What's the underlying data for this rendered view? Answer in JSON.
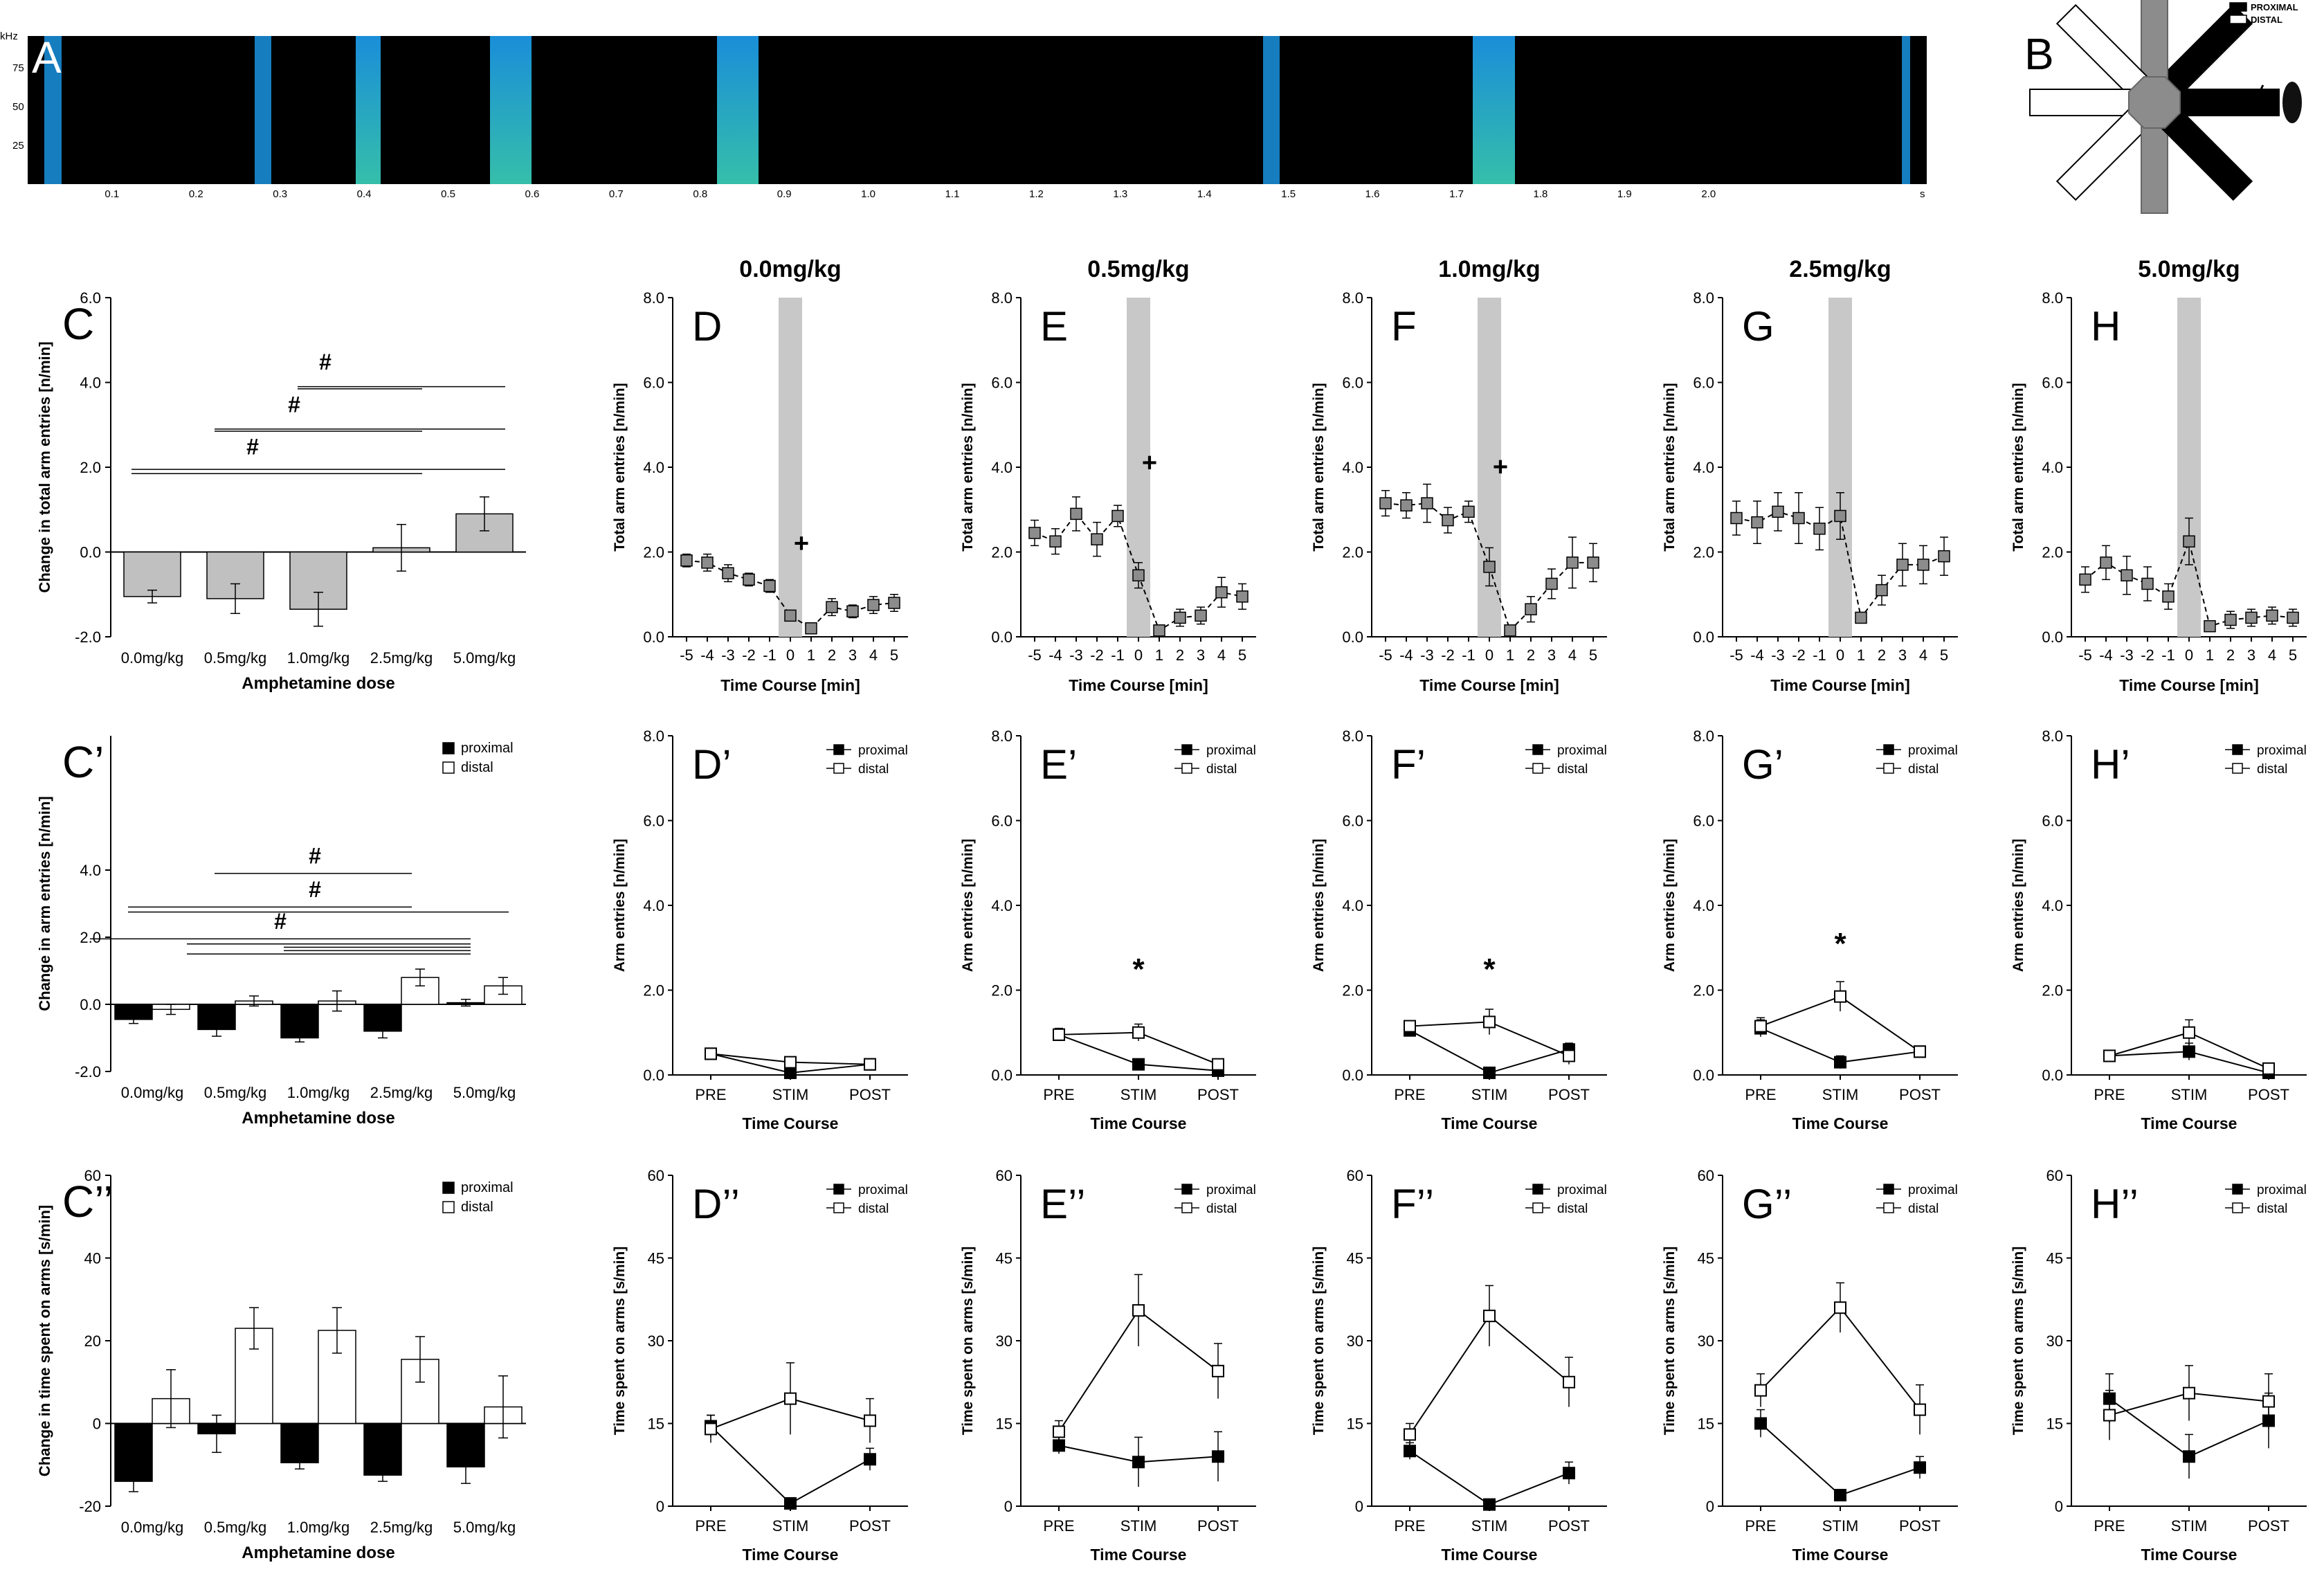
{
  "panel_A": {
    "letter": "A",
    "y_unit": "kHz",
    "y_ticks": [
      "75",
      "50",
      "25"
    ],
    "x_ticks": [
      "0.1",
      "0.2",
      "0.3",
      "0.4",
      "0.5",
      "0.6",
      "0.7",
      "0.8",
      "0.9",
      "1.0",
      "1.1",
      "1.2",
      "1.3",
      "1.4",
      "1.5",
      "1.6",
      "1.7",
      "1.8",
      "1.9",
      "2.0"
    ],
    "x_unit": "s",
    "bursts_s": [
      [
        0.02,
        0.04
      ],
      [
        0.27,
        0.29
      ],
      [
        0.39,
        0.42
      ],
      [
        0.55,
        0.6
      ],
      [
        0.82,
        0.87
      ],
      [
        1.47,
        1.49
      ],
      [
        1.72,
        1.77
      ],
      [
        2.23,
        2.24
      ]
    ],
    "colors": {
      "background": "#000000",
      "signal": "#1ea7ff",
      "strong": "#3fe0c8"
    }
  },
  "panel_B": {
    "letter": "B",
    "legend": [
      {
        "label": "PROXIMAL",
        "fill": "#000000"
      },
      {
        "label": "DISTAL",
        "fill": "#ffffff"
      }
    ]
  },
  "column_titles": [
    "0.0mg/kg",
    "0.5mg/kg",
    "1.0mg/kg",
    "2.5mg/kg",
    "5.0mg/kg"
  ],
  "chart_data": [
    {
      "id": "C",
      "letter": "C",
      "type": "bar",
      "ylabel": "Change in total arm entries [n/min]",
      "xlabel": "Amphetamine dose",
      "categories": [
        "0.0mg/kg",
        "0.5mg/kg",
        "1.0mg/kg",
        "2.5mg/kg",
        "5.0mg/kg"
      ],
      "ylim": [
        -2,
        6
      ],
      "yticks": [
        -2,
        0,
        2,
        4,
        6
      ],
      "ytick_labels": [
        "-2.0",
        "0.0",
        "2.0",
        "4.0",
        "6.0"
      ],
      "series": [
        {
          "values": [
            -1.05,
            -1.1,
            -1.35,
            0.1,
            0.9
          ],
          "errors": [
            0.15,
            0.35,
            0.4,
            0.55,
            0.4
          ],
          "color": "#c0c0c0"
        }
      ],
      "annotations": [
        "#",
        "#",
        "#"
      ]
    },
    {
      "id": "C'",
      "letter": "C’",
      "type": "bar",
      "ylabel": "Change in arm entries [n/min]",
      "xlabel": "Amphetamine dose",
      "categories": [
        "0.0mg/kg",
        "0.5mg/kg",
        "1.0mg/kg",
        "2.5mg/kg",
        "5.0mg/kg"
      ],
      "ylim": [
        -2,
        8
      ],
      "yticks": [
        -2,
        0,
        2,
        4
      ],
      "ytick_labels": [
        "-2.0",
        "0.0",
        "2.0",
        "4.0"
      ],
      "legend": [
        "proximal",
        "distal"
      ],
      "series": [
        {
          "name": "proximal",
          "values": [
            -0.45,
            -0.75,
            -1.0,
            -0.8,
            0.05
          ],
          "errors": [
            0.12,
            0.2,
            0.12,
            0.2,
            0.1
          ],
          "color": "#000000"
        },
        {
          "name": "distal",
          "values": [
            -0.15,
            0.1,
            0.1,
            0.8,
            0.55
          ],
          "errors": [
            0.15,
            0.15,
            0.3,
            0.25,
            0.25
          ],
          "color": "#ffffff"
        }
      ],
      "annotations": [
        "#",
        "#",
        "#"
      ]
    },
    {
      "id": "C''",
      "letter": "C’’",
      "type": "bar",
      "ylabel": "Change in time spent on arms [s/min]",
      "xlabel": "Amphetamine dose",
      "categories": [
        "0.0mg/kg",
        "0.5mg/kg",
        "1.0mg/kg",
        "2.5mg/kg",
        "5.0mg/kg"
      ],
      "ylim": [
        -20,
        60
      ],
      "yticks": [
        -20,
        0,
        20,
        40,
        60
      ],
      "ytick_labels": [
        "-20",
        "0",
        "20",
        "40",
        "60"
      ],
      "legend": [
        "proximal",
        "distal"
      ],
      "series": [
        {
          "name": "proximal",
          "values": [
            -14,
            -2.5,
            -9.5,
            -12.5,
            -10.5
          ],
          "errors": [
            2.5,
            4.5,
            1.5,
            1.5,
            4
          ],
          "color": "#000000"
        },
        {
          "name": "distal",
          "values": [
            6,
            23,
            22.5,
            15.5,
            4
          ],
          "errors": [
            7,
            5,
            5.5,
            5.5,
            7.5
          ],
          "color": "#ffffff"
        }
      ]
    },
    {
      "id": "D",
      "letter": "D",
      "type": "line",
      "xlabel": "Time Course [min]",
      "ylabel": "Total arm entries [n/min]",
      "x": [
        -5,
        -4,
        -3,
        -2,
        -1,
        0,
        1,
        2,
        3,
        4,
        5
      ],
      "ylim": [
        0,
        8
      ],
      "values": [
        1.8,
        1.75,
        1.5,
        1.35,
        1.2,
        0.5,
        0.2,
        0.7,
        0.6,
        0.75,
        0.8
      ],
      "errors": [
        0.15,
        0.2,
        0.2,
        0.15,
        0.15,
        0.1,
        0.05,
        0.2,
        0.15,
        0.2,
        0.2
      ],
      "marker": "+",
      "marker_value": 2.2
    },
    {
      "id": "E",
      "letter": "E",
      "type": "line",
      "xlabel": "Time Course [min]",
      "ylabel": "Total arm entries [n/min]",
      "x": [
        -5,
        -4,
        -3,
        -2,
        -1,
        0,
        1,
        2,
        3,
        4,
        5
      ],
      "ylim": [
        0,
        8
      ],
      "values": [
        2.45,
        2.25,
        2.9,
        2.3,
        2.85,
        1.45,
        0.15,
        0.45,
        0.5,
        1.05,
        0.95
      ],
      "errors": [
        0.3,
        0.3,
        0.4,
        0.4,
        0.25,
        0.3,
        0.05,
        0.2,
        0.2,
        0.35,
        0.3
      ],
      "marker": "+",
      "marker_value": 4.1
    },
    {
      "id": "F",
      "letter": "F",
      "type": "line",
      "xlabel": "Time Course [min]",
      "ylabel": "Total arm entries [n/min]",
      "x": [
        -5,
        -4,
        -3,
        -2,
        -1,
        0,
        1,
        2,
        3,
        4,
        5
      ],
      "ylim": [
        0,
        8
      ],
      "values": [
        3.15,
        3.1,
        3.15,
        2.75,
        2.95,
        1.65,
        0.15,
        0.65,
        1.25,
        1.75,
        1.75
      ],
      "errors": [
        0.3,
        0.3,
        0.45,
        0.3,
        0.25,
        0.45,
        0.05,
        0.3,
        0.35,
        0.6,
        0.45
      ],
      "marker": "+",
      "marker_value": 4.0
    },
    {
      "id": "G",
      "letter": "G",
      "type": "line",
      "xlabel": "Time Course [min]",
      "ylabel": "Total arm entries [n/min]",
      "x": [
        -5,
        -4,
        -3,
        -2,
        -1,
        0,
        1,
        2,
        3,
        4,
        5
      ],
      "ylim": [
        0,
        8
      ],
      "values": [
        2.8,
        2.7,
        2.95,
        2.8,
        2.55,
        2.85,
        0.45,
        1.1,
        1.7,
        1.7,
        1.9
      ],
      "errors": [
        0.4,
        0.5,
        0.45,
        0.6,
        0.5,
        0.55,
        0.1,
        0.35,
        0.5,
        0.45,
        0.45
      ]
    },
    {
      "id": "H",
      "letter": "H",
      "type": "line",
      "xlabel": "Time Course [min]",
      "ylabel": "Total arm entries [n/min]",
      "x": [
        -5,
        -4,
        -3,
        -2,
        -1,
        0,
        1,
        2,
        3,
        4,
        5
      ],
      "ylim": [
        0,
        8
      ],
      "values": [
        1.35,
        1.75,
        1.45,
        1.25,
        0.95,
        2.25,
        0.25,
        0.4,
        0.45,
        0.5,
        0.45
      ],
      "errors": [
        0.3,
        0.4,
        0.45,
        0.4,
        0.3,
        0.55,
        0.05,
        0.2,
        0.2,
        0.2,
        0.2
      ]
    },
    {
      "id": "D'",
      "letter": "D’",
      "type": "line",
      "xlabel": "Time Course",
      "ylabel": "Arm entries [n/min]",
      "categories": [
        "PRE",
        "STIM",
        "POST"
      ],
      "ylim": [
        0,
        8
      ],
      "legend": [
        "proximal",
        "distal"
      ],
      "series": [
        {
          "name": "proximal",
          "values": [
            0.5,
            0.05,
            0.25
          ],
          "errors": [
            0.05,
            0.05,
            0.05
          ]
        },
        {
          "name": "distal",
          "values": [
            0.5,
            0.3,
            0.25
          ],
          "errors": [
            0.1,
            0.1,
            0.05
          ]
        }
      ]
    },
    {
      "id": "E'",
      "letter": "E’",
      "type": "line",
      "xlabel": "Time Course",
      "ylabel": "Arm entries [n/min]",
      "categories": [
        "PRE",
        "STIM",
        "POST"
      ],
      "ylim": [
        0,
        8
      ],
      "legend": [
        "proximal",
        "distal"
      ],
      "series": [
        {
          "name": "proximal",
          "values": [
            0.95,
            0.25,
            0.1
          ],
          "errors": [
            0.1,
            0.05,
            0.05
          ]
        },
        {
          "name": "distal",
          "values": [
            0.95,
            1.0,
            0.25
          ],
          "errors": [
            0.15,
            0.2,
            0.1
          ]
        }
      ],
      "marker": "*",
      "marker_value": 2.5
    },
    {
      "id": "F'",
      "letter": "F’",
      "type": "line",
      "xlabel": "Time Course",
      "ylabel": "Arm entries [n/min]",
      "categories": [
        "PRE",
        "STIM",
        "POST"
      ],
      "ylim": [
        0,
        8
      ],
      "legend": [
        "proximal",
        "distal"
      ],
      "series": [
        {
          "name": "proximal",
          "values": [
            1.05,
            0.05,
            0.6
          ],
          "errors": [
            0.1,
            0.05,
            0.15
          ]
        },
        {
          "name": "distal",
          "values": [
            1.15,
            1.25,
            0.45
          ],
          "errors": [
            0.1,
            0.3,
            0.2
          ]
        }
      ],
      "marker": "*",
      "marker_value": 2.5
    },
    {
      "id": "G'",
      "letter": "G’",
      "type": "line",
      "xlabel": "Time Course",
      "ylabel": "Arm entries [n/min]",
      "categories": [
        "PRE",
        "STIM",
        "POST"
      ],
      "ylim": [
        0,
        8
      ],
      "legend": [
        "proximal",
        "distal"
      ],
      "series": [
        {
          "name": "proximal",
          "values": [
            1.1,
            0.3,
            0.55
          ],
          "errors": [
            0.2,
            0.15,
            0.1
          ]
        },
        {
          "name": "distal",
          "values": [
            1.15,
            1.85,
            0.55
          ],
          "errors": [
            0.2,
            0.35,
            0.1
          ]
        }
      ],
      "marker": "*",
      "marker_value": 3.1
    },
    {
      "id": "H'",
      "letter": "H’",
      "type": "line",
      "xlabel": "Time Course",
      "ylabel": "Arm entries [n/min]",
      "categories": [
        "PRE",
        "STIM",
        "POST"
      ],
      "ylim": [
        0,
        8
      ],
      "legend": [
        "proximal",
        "distal"
      ],
      "series": [
        {
          "name": "proximal",
          "values": [
            0.45,
            0.55,
            0.05
          ],
          "errors": [
            0.1,
            0.2,
            0.05
          ]
        },
        {
          "name": "distal",
          "values": [
            0.45,
            1.0,
            0.15
          ],
          "errors": [
            0.1,
            0.3,
            0.05
          ]
        }
      ]
    },
    {
      "id": "D''",
      "letter": "D’’",
      "type": "line",
      "xlabel": "Time Course",
      "ylabel": "Time spent on arms [s/min]",
      "categories": [
        "PRE",
        "STIM",
        "POST"
      ],
      "ylim": [
        0,
        60
      ],
      "legend": [
        "proximal",
        "distal"
      ],
      "series": [
        {
          "name": "proximal",
          "values": [
            14.5,
            0.5,
            8.5
          ],
          "errors": [
            2,
            0.5,
            2
          ]
        },
        {
          "name": "distal",
          "values": [
            14,
            19.5,
            15.5
          ],
          "errors": [
            2.5,
            6.5,
            4
          ]
        }
      ]
    },
    {
      "id": "E''",
      "letter": "E’’",
      "type": "line",
      "xlabel": "Time Course",
      "ylabel": "Time spent on arms [s/min]",
      "categories": [
        "PRE",
        "STIM",
        "POST"
      ],
      "ylim": [
        0,
        60
      ],
      "legend": [
        "proximal",
        "distal"
      ],
      "series": [
        {
          "name": "proximal",
          "values": [
            11,
            8,
            9
          ],
          "errors": [
            1.5,
            4.5,
            4.5
          ]
        },
        {
          "name": "distal",
          "values": [
            13.5,
            35.5,
            24.5
          ],
          "errors": [
            2,
            6.5,
            5
          ]
        }
      ]
    },
    {
      "id": "F''",
      "letter": "F’’",
      "type": "line",
      "xlabel": "Time Course",
      "ylabel": "Time spent on arms [s/min]",
      "categories": [
        "PRE",
        "STIM",
        "POST"
      ],
      "ylim": [
        0,
        60
      ],
      "legend": [
        "proximal",
        "distal"
      ],
      "series": [
        {
          "name": "proximal",
          "values": [
            10,
            0.3,
            6
          ],
          "errors": [
            1.5,
            0.3,
            2
          ]
        },
        {
          "name": "distal",
          "values": [
            13,
            34.5,
            22.5
          ],
          "errors": [
            2,
            5.5,
            4.5
          ]
        }
      ]
    },
    {
      "id": "G''",
      "letter": "G’’",
      "type": "line",
      "xlabel": "Time Course",
      "ylabel": "Time spent on arms [s/min]",
      "categories": [
        "PRE",
        "STIM",
        "POST"
      ],
      "ylim": [
        0,
        60
      ],
      "legend": [
        "proximal",
        "distal"
      ],
      "series": [
        {
          "name": "proximal",
          "values": [
            15,
            2,
            7
          ],
          "errors": [
            2.5,
            0.8,
            2
          ]
        },
        {
          "name": "distal",
          "values": [
            21,
            36,
            17.5
          ],
          "errors": [
            3,
            4.5,
            4.5
          ]
        }
      ]
    },
    {
      "id": "H''",
      "letter": "H’’",
      "type": "line",
      "xlabel": "Time Course",
      "ylabel": "Time spent on arms [s/min]",
      "categories": [
        "PRE",
        "STIM",
        "POST"
      ],
      "ylim": [
        0,
        60
      ],
      "legend": [
        "proximal",
        "distal"
      ],
      "series": [
        {
          "name": "proximal",
          "values": [
            19.5,
            9,
            15.5
          ],
          "errors": [
            4.5,
            4,
            5
          ]
        },
        {
          "name": "distal",
          "values": [
            16.5,
            20.5,
            19
          ],
          "errors": [
            4.5,
            5,
            5
          ]
        }
      ]
    }
  ]
}
